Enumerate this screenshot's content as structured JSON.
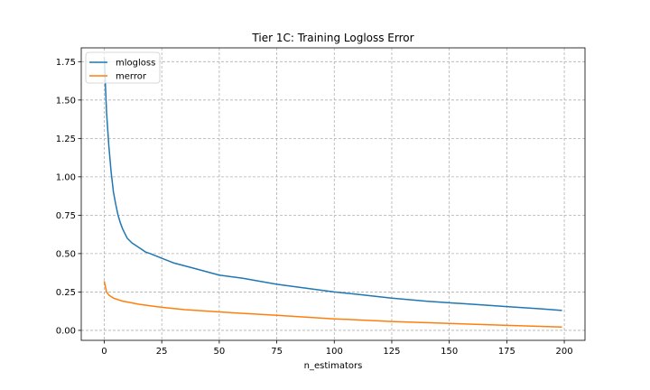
{
  "chart_data": {
    "type": "line",
    "title": "Tier 1C: Training Logloss Error",
    "xlabel": "n_estimators",
    "ylabel": "",
    "xlim": [
      -10,
      209
    ],
    "ylim": [
      -0.065,
      1.84
    ],
    "xticks": [
      0,
      25,
      50,
      75,
      100,
      125,
      150,
      175,
      200
    ],
    "xtick_labels": [
      "0",
      "25",
      "50",
      "75",
      "100",
      "125",
      "150",
      "175",
      "200"
    ],
    "yticks": [
      0.0,
      0.25,
      0.5,
      0.75,
      1.0,
      1.25,
      1.5,
      1.75
    ],
    "ytick_labels": [
      "0.00",
      "0.25",
      "0.50",
      "0.75",
      "1.00",
      "1.25",
      "1.50",
      "1.75"
    ],
    "grid": true,
    "grid_style": "dashed",
    "legend_position": "top-left",
    "series": [
      {
        "name": "mlogloss",
        "color": "#1f77b4",
        "x": [
          0,
          1,
          2,
          3,
          4,
          5,
          6,
          7,
          8,
          9,
          10,
          12,
          14,
          16,
          18,
          20,
          25,
          30,
          35,
          40,
          50,
          60,
          75,
          90,
          100,
          110,
          125,
          140,
          150,
          160,
          175,
          190,
          199
        ],
        "values": [
          1.78,
          1.42,
          1.2,
          1.03,
          0.9,
          0.82,
          0.75,
          0.7,
          0.66,
          0.63,
          0.6,
          0.57,
          0.55,
          0.53,
          0.51,
          0.5,
          0.47,
          0.44,
          0.42,
          0.4,
          0.36,
          0.34,
          0.3,
          0.27,
          0.25,
          0.235,
          0.21,
          0.19,
          0.18,
          0.17,
          0.155,
          0.14,
          0.13
        ]
      },
      {
        "name": "merror",
        "color": "#ff7f0e",
        "x": [
          0,
          1,
          2,
          4,
          6,
          8,
          10,
          15,
          20,
          25,
          35,
          50,
          75,
          100,
          125,
          150,
          175,
          199
        ],
        "values": [
          0.32,
          0.25,
          0.23,
          0.21,
          0.2,
          0.19,
          0.185,
          0.17,
          0.16,
          0.15,
          0.135,
          0.12,
          0.098,
          0.075,
          0.058,
          0.045,
          0.033,
          0.022
        ]
      }
    ]
  }
}
